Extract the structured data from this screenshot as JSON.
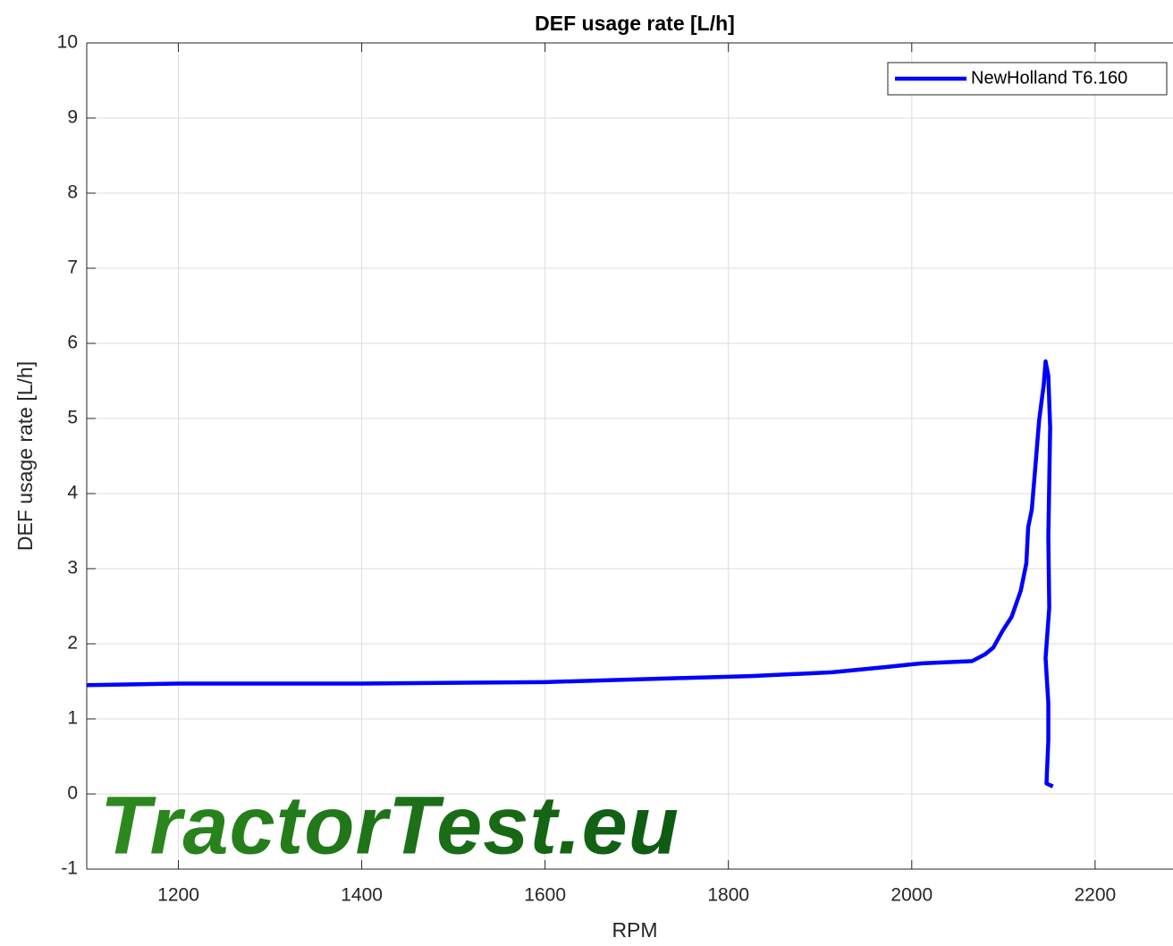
{
  "chart_data": {
    "type": "line",
    "title": "DEF usage rate [L/h]",
    "xlabel": "RPM",
    "ylabel": "DEF usage rate [L/h]",
    "watermark": "TractorTest.eu",
    "xlim": [
      1100,
      2285
    ],
    "ylim": [
      -1,
      10
    ],
    "xticks": [
      1200,
      1400,
      1600,
      1800,
      2000,
      2200
    ],
    "yticks": [
      -1,
      0,
      1,
      2,
      3,
      4,
      5,
      6,
      7,
      8,
      9,
      10
    ],
    "grid": true,
    "legend": "upper right",
    "series": [
      {
        "name": "NewHolland T6.160",
        "color": "#0000ff",
        "x": [
          1100,
          1200,
          1400,
          1600,
          1738,
          1825,
          1913,
          1972,
          2011,
          2066,
          2080,
          2089,
          2099,
          2109,
          2119,
          2125,
          2127,
          2131,
          2135,
          2139,
          2144,
          2146,
          2149,
          2151,
          2149,
          2150,
          2146,
          2149,
          2149,
          2147,
          2154
        ],
        "values": [
          1.45,
          1.47,
          1.47,
          1.49,
          1.54,
          1.57,
          1.62,
          1.69,
          1.74,
          1.77,
          1.86,
          1.95,
          2.17,
          2.36,
          2.71,
          3.07,
          3.55,
          3.79,
          4.38,
          4.98,
          5.45,
          5.76,
          5.57,
          4.88,
          3.43,
          2.48,
          1.81,
          1.21,
          0.71,
          0.14,
          0.1
        ]
      }
    ]
  }
}
